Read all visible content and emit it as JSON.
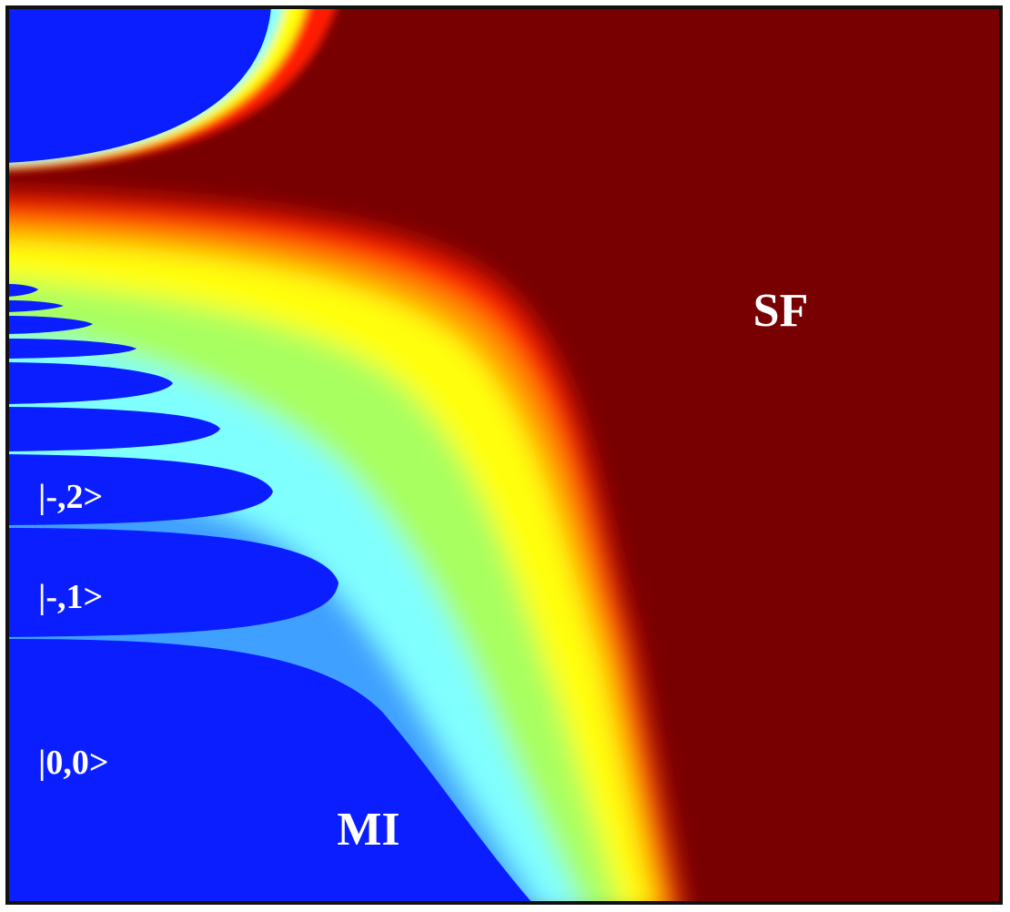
{
  "labels": {
    "sf": "SF",
    "mi": "MI",
    "state_00": "|0,0>",
    "state_1": "|-,1>",
    "state_2": "|-,2>"
  }
}
